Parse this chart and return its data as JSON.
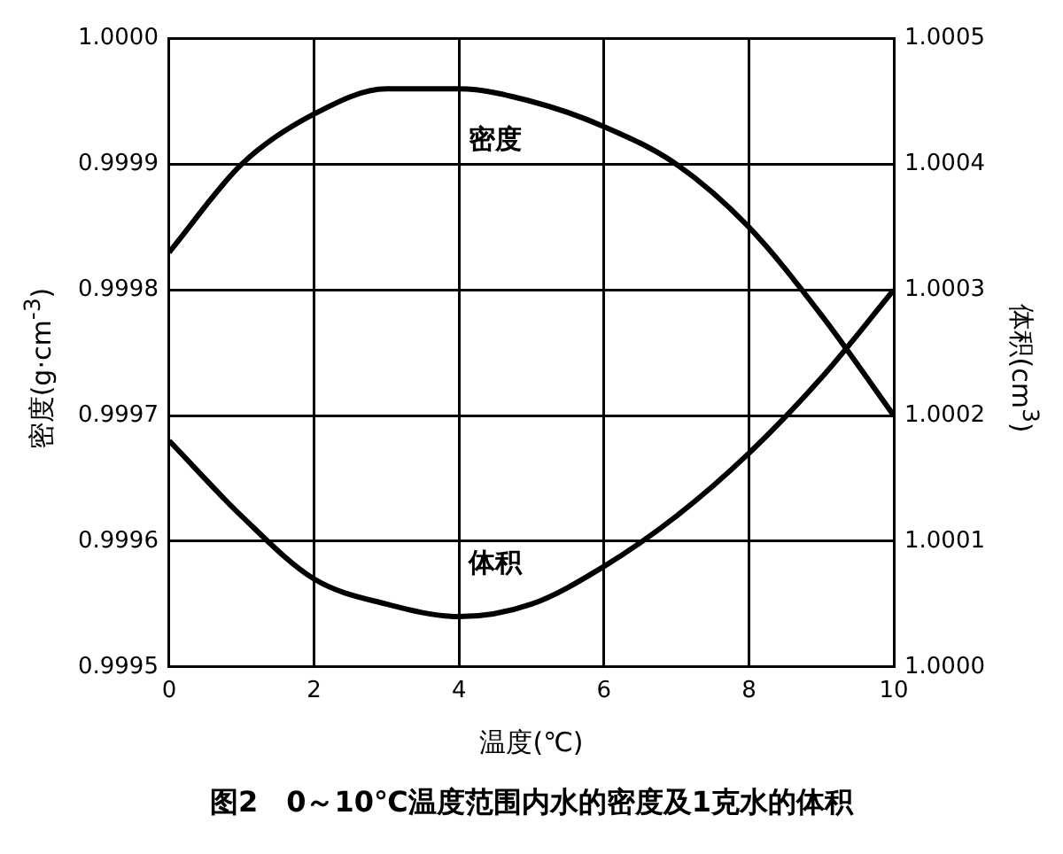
{
  "chart_data": {
    "type": "line",
    "xlabel": "温度(℃)",
    "ylabel": "密度(g·cm$^{-3}$)",
    "y2label": "体积(cm$^{3}$)",
    "annotations": [
      "图2　0～10℃温度范围内水的密度及1克水的体积"
    ],
    "x": [
      0,
      1,
      2,
      3,
      4,
      5,
      6,
      7,
      8,
      9,
      10
    ],
    "series": [
      {
        "name": "密度",
        "color": "#000000",
        "values": [
          0.99983,
          0.9999,
          0.99994,
          0.99996,
          0.99996,
          0.99995,
          0.99993,
          0.9999,
          0.99985,
          0.99978,
          0.9997
        ]
      },
      {
        "name": "体积",
        "color": "#000000",
        "axis": "y2",
        "values": [
          1.00018,
          1.00012,
          1.00007,
          1.00005,
          1.00004,
          1.00005,
          1.00008,
          1.00012,
          1.00017,
          1.00023,
          1.0003
        ]
      }
    ],
    "xlim": [
      0,
      10
    ],
    "xticks": [
      0,
      2,
      4,
      6,
      8,
      10
    ],
    "ylim": [
      0.9995,
      1
    ],
    "yticks": [
      {
        "value": 0.9995,
        "label": "0.9995"
      },
      {
        "value": 0.9996,
        "label": "0.9996"
      },
      {
        "value": 0.9997,
        "label": "0.9997"
      },
      {
        "value": 0.9998,
        "label": "0.9998"
      },
      {
        "value": 0.9999,
        "label": "0.9999"
      },
      {
        "value": 1,
        "label": "1.0000"
      }
    ],
    "y2lim": [
      1,
      1.0005
    ],
    "y2ticks": [
      {
        "value": 1,
        "label": "1.0000"
      },
      {
        "value": 1.0001,
        "label": "1.0001"
      },
      {
        "value": 1.0002,
        "label": "1.0002"
      },
      {
        "value": 1.0003,
        "label": "1.0003"
      },
      {
        "value": 1.0004,
        "label": "1.0004"
      },
      {
        "value": 1.0005,
        "label": "1.0005"
      }
    ],
    "grid": true,
    "legend": false,
    "marker": "none",
    "line_style": "solid"
  }
}
